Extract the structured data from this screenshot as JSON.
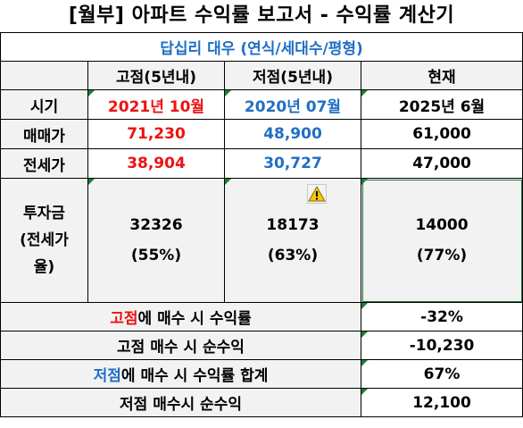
{
  "title": "[월부] 아파트 수익률 보고서 - 수익률 계산기",
  "subtitle": "답십리 대우 (연식/세대수/평형)",
  "headers": {
    "col_high": "고점(5년내)",
    "col_low": "저점(5년내)",
    "col_now": "현재"
  },
  "rows": [
    {
      "label": "시기",
      "high": "2021년 10월",
      "low": "2020년 07월",
      "now": "2025년 6월"
    },
    {
      "label": "매매가",
      "high": "71,230",
      "low": "48,900",
      "now": "61,000"
    },
    {
      "label": "전세가",
      "high": "38,904",
      "low": "30,727",
      "now": "47,000"
    }
  ],
  "investment": {
    "label": "투자금\n(전세가\n율)",
    "high": {
      "amount": "32326",
      "ratio": "(55%)"
    },
    "low": {
      "amount": "18173",
      "ratio": "(63%)"
    },
    "now": {
      "amount": "14000",
      "ratio": "(77%)"
    }
  },
  "summary": [
    {
      "label_highlight": "고점",
      "label_rest": "에 매수 시 수익률",
      "value": "-32%"
    },
    {
      "label_highlight": "",
      "label_rest": "고점 매수 시 순수익",
      "value": "-10,230"
    },
    {
      "label_highlight": "저점",
      "label_rest": "에 매수 시 수익률 합계",
      "value": "67%"
    },
    {
      "label_highlight": "",
      "label_rest": "저점 매수시 순수익",
      "value": "12,100"
    }
  ],
  "colors": {
    "red": "#ee1111",
    "blue": "#1f6fc5",
    "header_gray": "#f2f2f2",
    "indicator_green": "#1a7f37"
  },
  "icons": {
    "warning": "warning-triangle-icon",
    "indicator": "cell-error-indicator-icon"
  }
}
